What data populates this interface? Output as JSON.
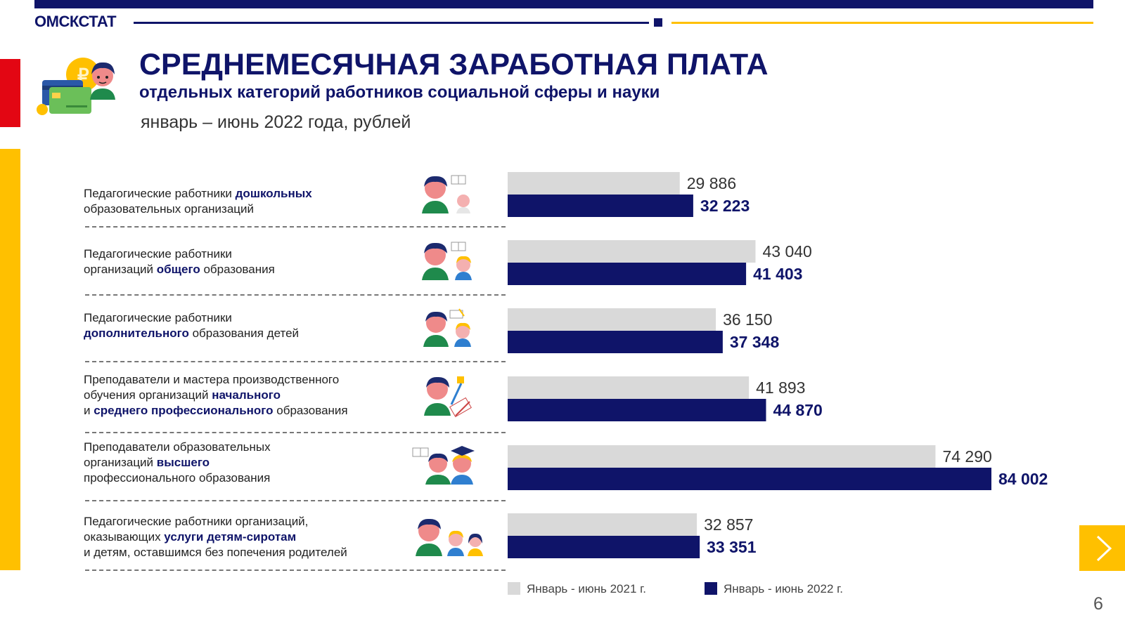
{
  "header": {
    "brand": "ОМСКСТАТ",
    "title": "СРЕДНЕМЕСЯЧНАЯ ЗАРАБОТНАЯ ПЛАТА",
    "subtitle": "отдельных категорий работников социальной сферы и науки",
    "period": "январь – июнь 2022 года, рублей"
  },
  "colors": {
    "navy": "#0f1469",
    "grey": "#d9d9d9",
    "yellow": "#ffc000",
    "red": "#e30613"
  },
  "rows": [
    {
      "line1_pre": "Педагогические  работники  ",
      "line1_bold": "дошкольных",
      "line1_post": "",
      "line2_pre": "образовательных  организаций",
      "line2_bold": "",
      "line2_post": "",
      "line3_pre": "",
      "line3_bold": "",
      "line3_post": ""
    },
    {
      "line1_pre": "Педагогические  работники",
      "line1_bold": "",
      "line1_post": "",
      "line2_pre": "организаций  ",
      "line2_bold": "общего",
      "line2_post": " образования",
      "line3_pre": "",
      "line3_bold": "",
      "line3_post": ""
    },
    {
      "line1_pre": "Педагогические  работники",
      "line1_bold": "",
      "line1_post": "",
      "line2_pre": "",
      "line2_bold": "дополнительного",
      "line2_post": " образования  детей",
      "line3_pre": "",
      "line3_bold": "",
      "line3_post": ""
    },
    {
      "line1_pre": "Преподаватели и мастера производственного",
      "line1_bold": "",
      "line1_post": "",
      "line2_pre": "обучения  организаций  ",
      "line2_bold": "начального",
      "line2_post": "",
      "line3_pre": "и ",
      "line3_bold": "среднего профессионального",
      "line3_post": " образования"
    },
    {
      "line1_pre": "Преподаватели  образовательных",
      "line1_bold": "",
      "line1_post": "",
      "line2_pre": "организаций  ",
      "line2_bold": "высшего",
      "line2_post": "",
      "line3_pre": "профессионального  образования",
      "line3_bold": "",
      "line3_post": ""
    },
    {
      "line1_pre": "Педагогические  работники  организаций,",
      "line1_bold": "",
      "line1_post": "",
      "line2_pre": "оказывающих  ",
      "line2_bold": "услуги детям-сиротам",
      "line2_post": "",
      "line3_pre": "и детям,  оставшимся  без попечения  родителей",
      "line3_bold": "",
      "line3_post": ""
    }
  ],
  "chart_data": {
    "type": "bar",
    "orientation": "horizontal",
    "title": "СРЕДНЕМЕСЯЧНАЯ ЗАРАБОТНАЯ ПЛАТА",
    "xlabel": "",
    "ylabel": "",
    "xlim": [
      0,
      90000
    ],
    "grid": false,
    "legend_position": "bottom",
    "categories": [
      "Педагогические работники дошкольных образовательных организаций",
      "Педагогические работники организаций общего образования",
      "Педагогические работники дополнительного образования детей",
      "Преподаватели и мастера производственного обучения организаций начального и среднего профессионального образования",
      "Преподаватели образовательных организаций высшего профессионального образования",
      "Педагогические работники организаций, оказывающих услуги детям-сиротам и детям, оставшимся без попечения родителей"
    ],
    "series": [
      {
        "name": "Январь - июнь 2021 г.",
        "color": "#d9d9d9",
        "values": [
          29886,
          43040,
          36150,
          41893,
          74290,
          32857
        ],
        "labels": [
          "29 886",
          "43 040",
          "36 150",
          "41 893",
          "74 290",
          "32 857"
        ]
      },
      {
        "name": "Январь - июнь 2022 г.",
        "color": "#0f1469",
        "values": [
          32223,
          41403,
          37348,
          44870,
          84002,
          33351
        ],
        "labels": [
          "32 223",
          "41 403",
          "37 348",
          "44 870",
          "84 002",
          "33 351"
        ]
      }
    ]
  },
  "legend": {
    "label_2021": "Январь - июнь 2021 г.",
    "label_2022": "Январь - июнь 2022 г."
  },
  "page_number": "6"
}
